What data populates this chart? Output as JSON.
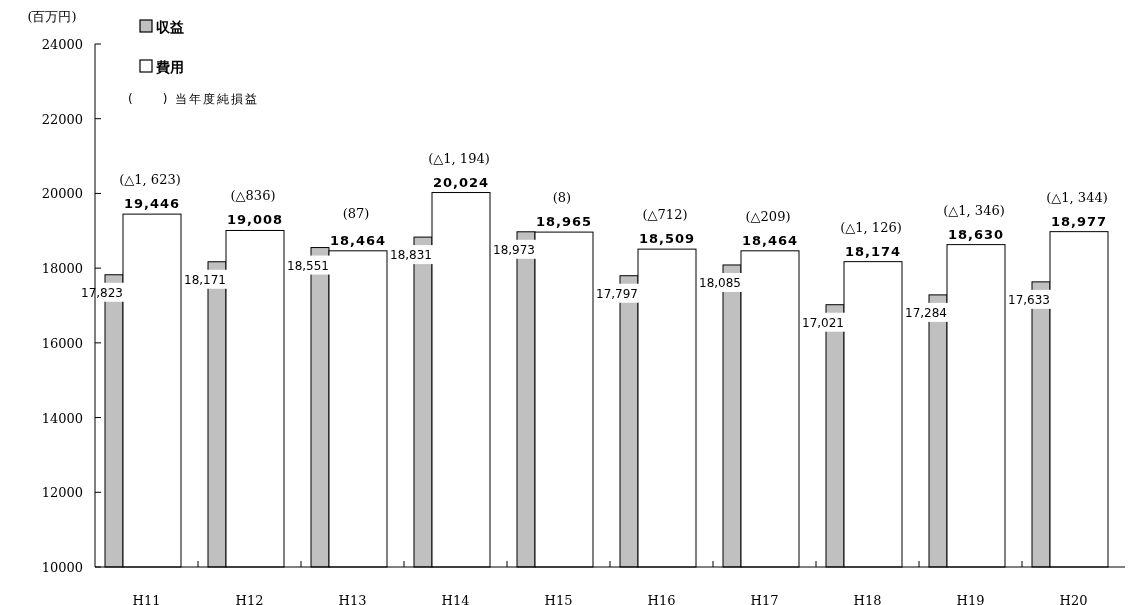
{
  "chart_data": {
    "type": "bar",
    "ylabel": "(百万円)",
    "categories": [
      "H11",
      "H12",
      "H13",
      "H14",
      "H15",
      "H16",
      "H17",
      "H18",
      "H19",
      "H20"
    ],
    "series": [
      {
        "name": "収益",
        "color": "#c0c0c0",
        "values": [
          17823,
          18171,
          18551,
          18831,
          18973,
          17797,
          18085,
          17021,
          17284,
          17633
        ],
        "value_labels": [
          "17,823",
          "18,171",
          "18,551",
          "18,831",
          "18,973",
          "17,797",
          "18,085",
          "17,021",
          "17,284",
          "17,633"
        ]
      },
      {
        "name": "費用",
        "color": "#ffffff",
        "values": [
          19446,
          19008,
          18464,
          20024,
          18965,
          18509,
          18464,
          18174,
          18630,
          18977
        ],
        "value_labels": [
          "19,446",
          "19,008",
          "18,464",
          "20,024",
          "18,965",
          "18,509",
          "18,464",
          "18,174",
          "18,630",
          "18,977"
        ]
      }
    ],
    "ylim": [
      10000,
      24000
    ],
    "yticks": [
      10000,
      12000,
      14000,
      16000,
      18000,
      20000,
      22000,
      24000
    ],
    "grid": false,
    "legend": "top left",
    "annotations": [
      "(　　) 当年度純損益",
      "(△1, 623)",
      "(△836)",
      "(87)",
      "(△1, 194)",
      "(8)",
      "(△712)",
      "(△209)",
      "(△1, 126)",
      "(△1, 346)",
      "(△1, 344)"
    ]
  }
}
